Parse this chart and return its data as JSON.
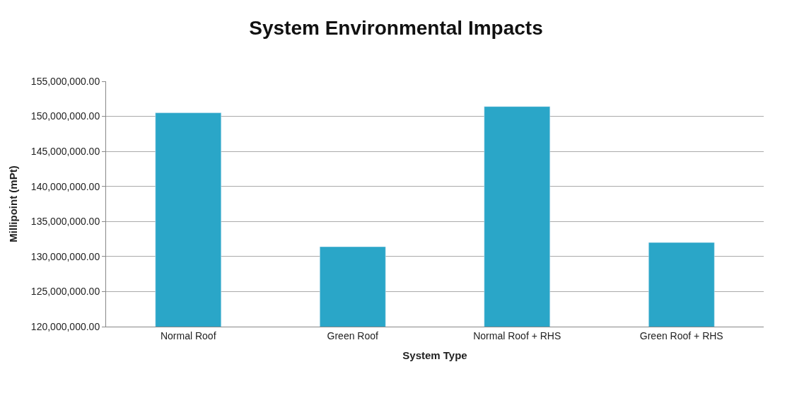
{
  "chart_data": {
    "type": "bar",
    "title": "System Environmental Impacts",
    "xlabel": "System Type",
    "ylabel": "Millipoint (mPt)",
    "categories": [
      "Normal Roof",
      "Green Roof",
      "Normal Roof + RHS",
      "Green Roof + RHS"
    ],
    "values": [
      150500000,
      131400000,
      151400000,
      132000000
    ],
    "color": "#2aa6c8",
    "ylim": [
      120000000,
      155000000
    ],
    "yticks": [
      {
        "value": 120000000,
        "label": "120,000,000.00"
      },
      {
        "value": 125000000,
        "label": "125,000,000.00"
      },
      {
        "value": 130000000,
        "label": "130,000,000.00"
      },
      {
        "value": 135000000,
        "label": "135,000,000.00"
      },
      {
        "value": 140000000,
        "label": "140,000,000.00"
      },
      {
        "value": 145000000,
        "label": "145,000,000.00"
      },
      {
        "value": 150000000,
        "label": "150,000,000.00"
      },
      {
        "value": 155000000,
        "label": "155,000,000.00"
      }
    ],
    "grid": "y",
    "legend": false
  }
}
